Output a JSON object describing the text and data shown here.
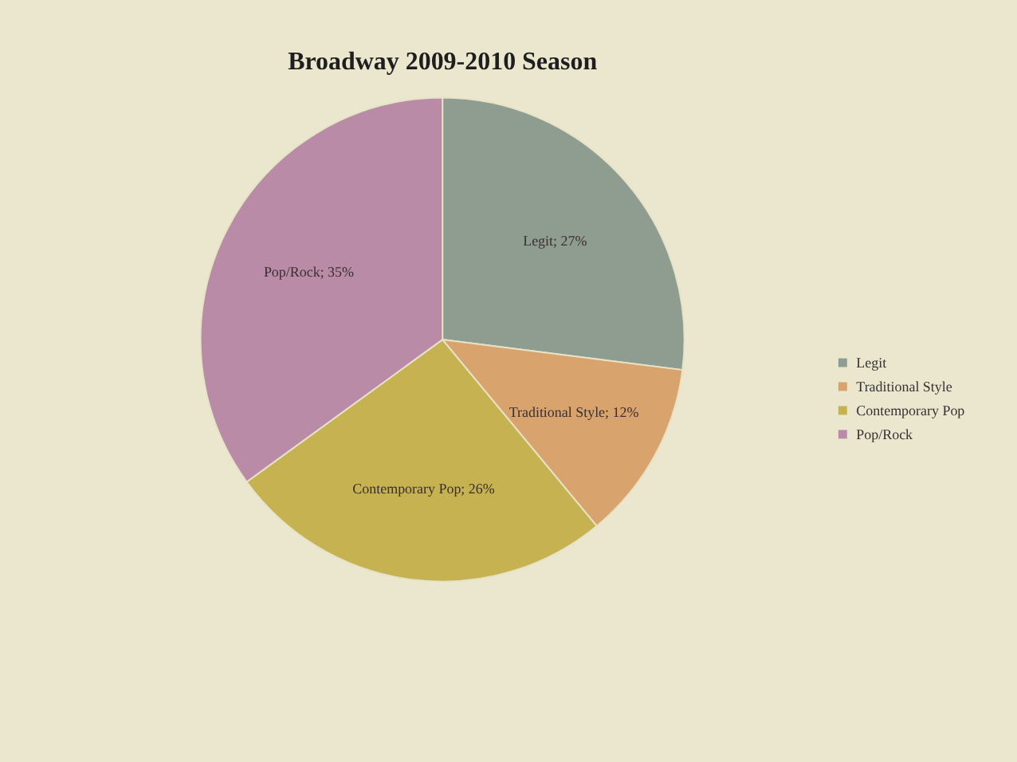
{
  "chart_data": {
    "type": "pie",
    "title": "Broadway 2009-2010 Season",
    "categories": [
      "Legit",
      "Traditional Style",
      "Contemporary Pop",
      "Pop/Rock"
    ],
    "values": [
      27,
      12,
      26,
      35
    ],
    "colors": [
      "#8f9d90",
      "#d9a36e",
      "#c6b250",
      "#b98ba7"
    ],
    "value_labels": [
      "Legit; 27%",
      "Traditional Style; 12%",
      "Contemporary Pop; 26%",
      "Pop/Rock; 35%"
    ],
    "legend": "right"
  }
}
